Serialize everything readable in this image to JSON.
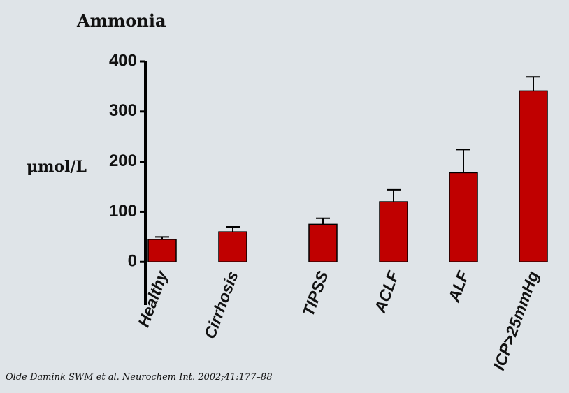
{
  "chart_data": {
    "type": "bar",
    "title": "Ammonia",
    "y_label": "μmol/L",
    "categories": [
      "Healthy",
      "Cirrhosis",
      "TIPSS",
      "ACLF",
      "ALF",
      "ICP>25mmHg"
    ],
    "values": [
      45,
      60,
      75,
      120,
      178,
      341
    ],
    "errors": [
      5,
      10,
      12,
      24,
      46,
      28
    ],
    "color": "#c00000",
    "ylim": [
      -86,
      400
    ],
    "yticks": [
      0,
      100,
      200,
      300,
      400
    ],
    "source": "Olde Damink SWM et al. Neurochem Int. 2002;41:177–88"
  }
}
